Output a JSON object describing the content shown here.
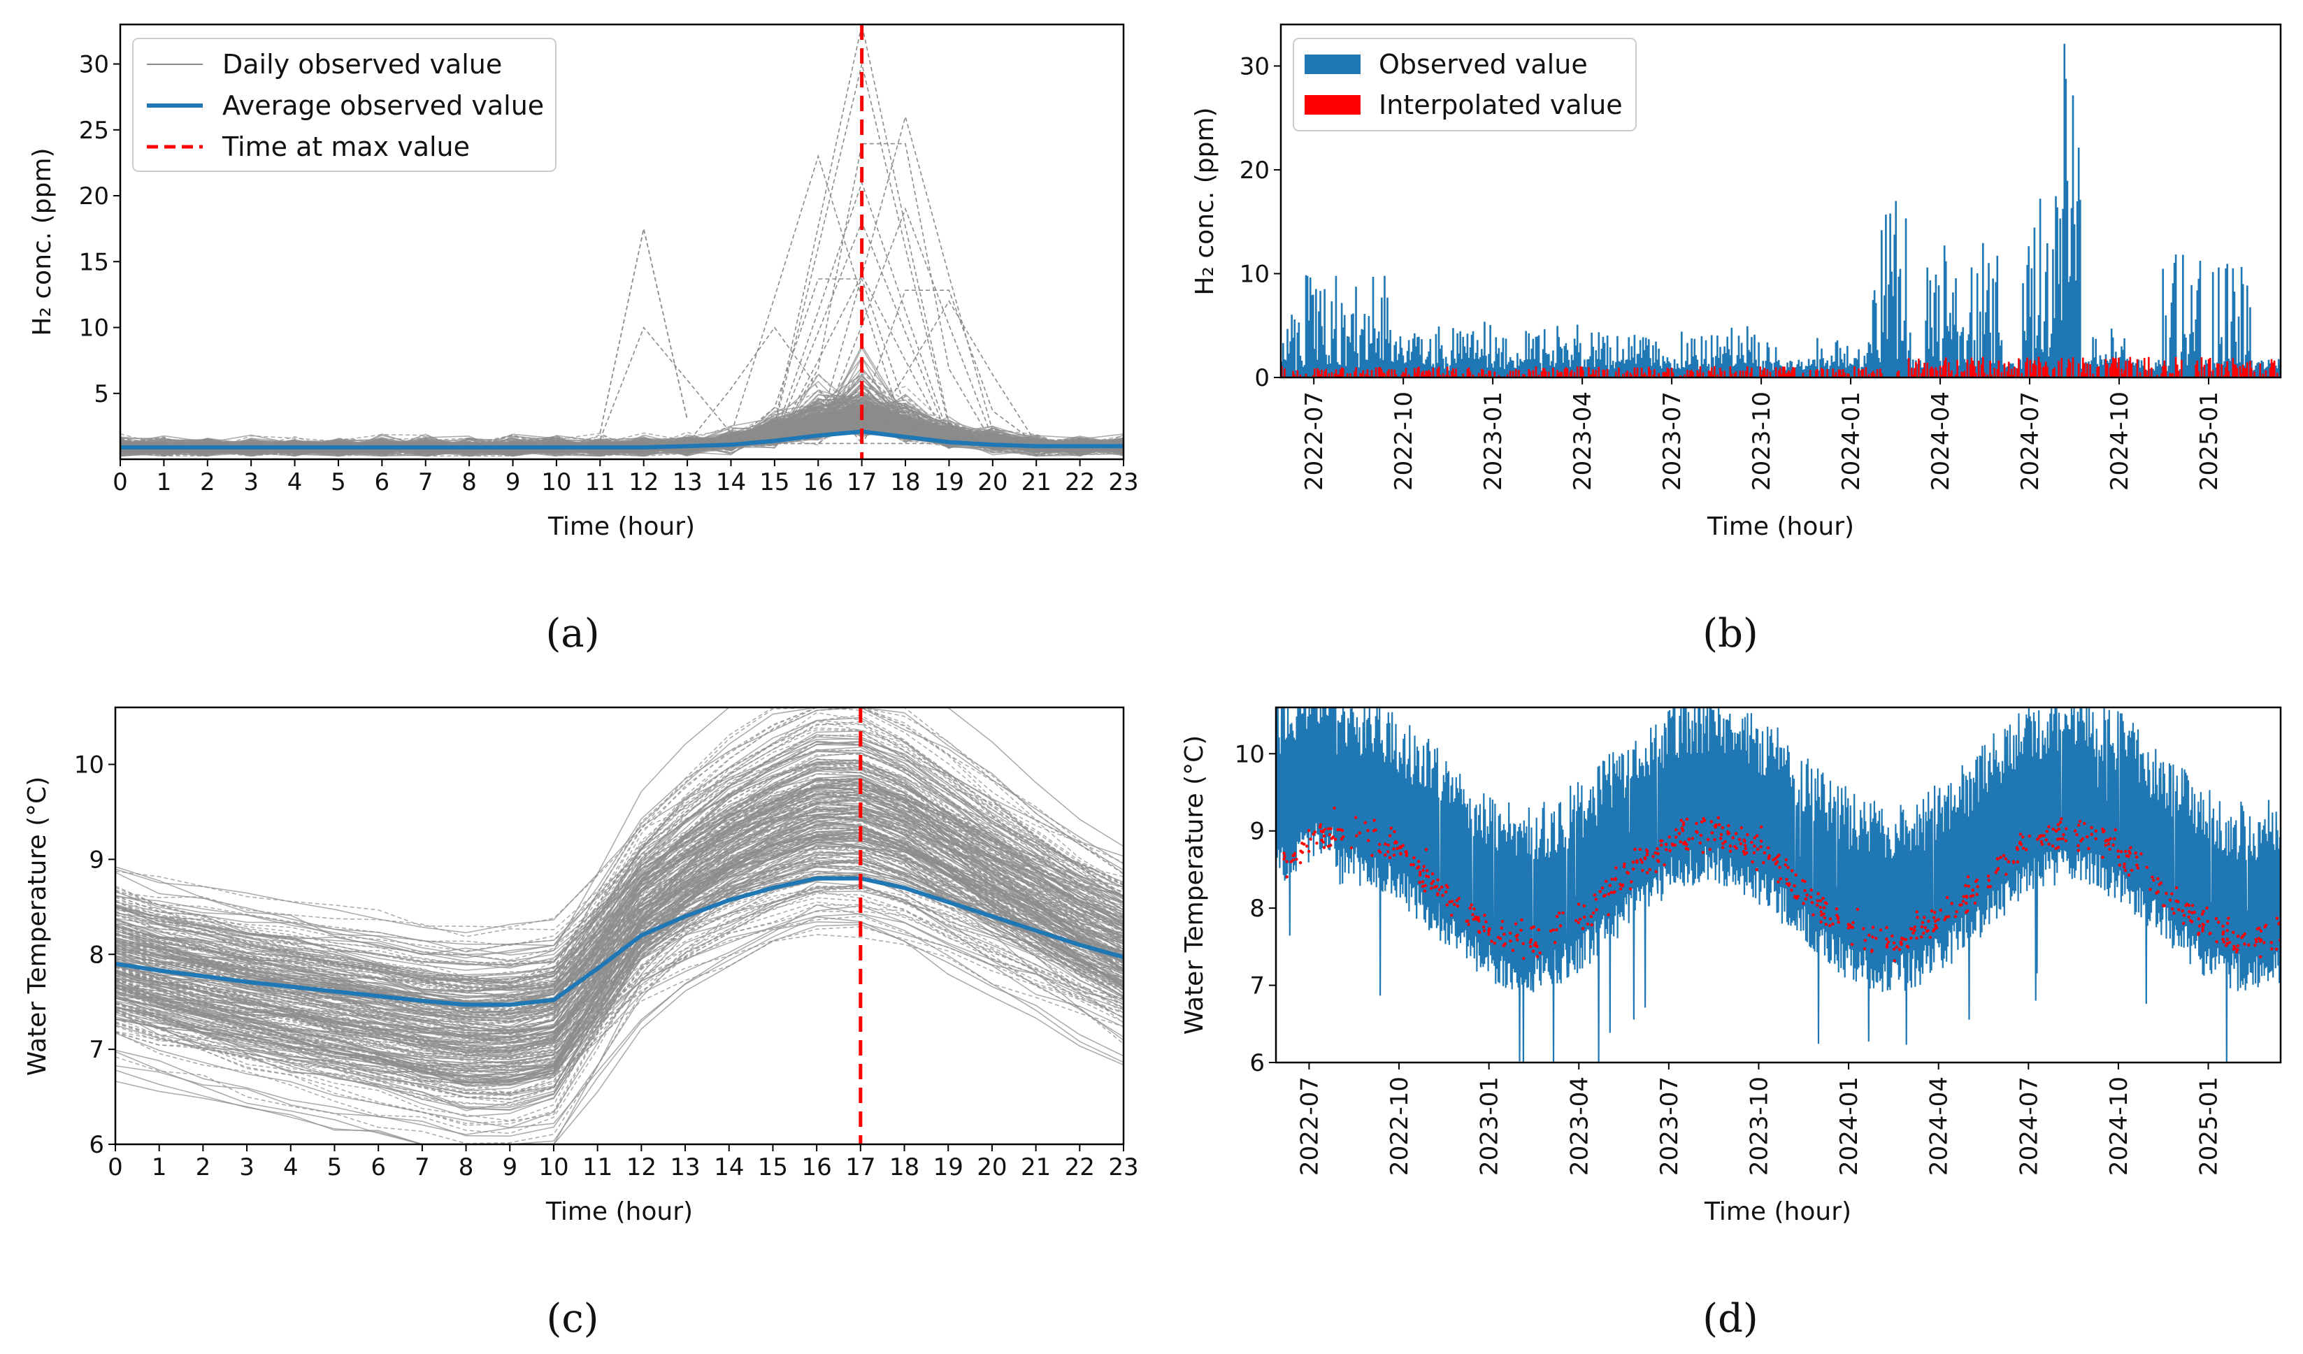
{
  "chart_data": [
    {
      "panel": "a",
      "caption": "(a)",
      "type": "line",
      "xlabel": "Time (hour)",
      "ylabel": "H₂ conc. (ppm)",
      "xlim": [
        0,
        23
      ],
      "ylim": [
        0,
        33
      ],
      "x_ticks": [
        "0",
        "1",
        "2",
        "3",
        "4",
        "5",
        "6",
        "7",
        "8",
        "9",
        "10",
        "11",
        "12",
        "13",
        "14",
        "15",
        "16",
        "17",
        "18",
        "19",
        "20",
        "21",
        "22",
        "23"
      ],
      "y_ticks": [
        "5",
        "10",
        "15",
        "20",
        "25",
        "30"
      ],
      "legend_position": "top-left",
      "series": [
        {
          "name": "Daily observed value",
          "color": "#8c8c8c",
          "style": "thin"
        },
        {
          "name": "Average observed value",
          "color": "#1f77b4",
          "x": [
            0,
            1,
            2,
            3,
            4,
            5,
            6,
            7,
            8,
            9,
            10,
            11,
            12,
            13,
            14,
            15,
            16,
            17,
            18,
            19,
            20,
            21,
            22,
            23
          ],
          "values": [
            0.9,
            0.9,
            0.9,
            0.9,
            0.9,
            0.9,
            0.9,
            0.9,
            0.9,
            0.9,
            0.9,
            0.9,
            0.9,
            1.0,
            1.1,
            1.4,
            1.8,
            2.1,
            1.7,
            1.3,
            1.1,
            1.0,
            1.0,
            1.0
          ]
        },
        {
          "name": "Time at max value",
          "color": "#ff0000",
          "style": "dashed",
          "x": 17
        }
      ]
    },
    {
      "panel": "b",
      "caption": "(b)",
      "type": "bar",
      "xlabel": "Time (hour)",
      "ylabel": "H₂ conc. (ppm)",
      "ylim": [
        0,
        34
      ],
      "x_ticks": [
        "2022-07",
        "2022-10",
        "2023-01",
        "2023-04",
        "2023-07",
        "2023-10",
        "2024-01",
        "2024-04",
        "2024-07",
        "2024-10",
        "2025-01"
      ],
      "y_ticks": [
        "0",
        "10",
        "20",
        "30"
      ],
      "legend_position": "top-left",
      "series": [
        {
          "name": "Observed value",
          "color": "#1f77b4"
        },
        {
          "name": "Interpolated value",
          "color": "#ff0000"
        }
      ]
    },
    {
      "panel": "c",
      "caption": "(c)",
      "type": "line",
      "xlabel": "Time (hour)",
      "ylabel": "Water Temperature (°C)",
      "xlim": [
        0,
        23
      ],
      "ylim": [
        6,
        10.6
      ],
      "x_ticks": [
        "0",
        "1",
        "2",
        "3",
        "4",
        "5",
        "6",
        "7",
        "8",
        "9",
        "10",
        "11",
        "12",
        "13",
        "14",
        "15",
        "16",
        "17",
        "18",
        "19",
        "20",
        "21",
        "22",
        "23"
      ],
      "y_ticks": [
        "6",
        "7",
        "8",
        "9",
        "10"
      ],
      "series": [
        {
          "name": "Daily observed value",
          "color": "#8c8c8c",
          "style": "thin"
        },
        {
          "name": "Average observed value",
          "color": "#1f77b4",
          "x": [
            0,
            1,
            2,
            3,
            4,
            5,
            6,
            7,
            8,
            9,
            10,
            11,
            12,
            13,
            14,
            15,
            16,
            17,
            18,
            19,
            20,
            21,
            22,
            23
          ],
          "values": [
            7.9,
            7.83,
            7.77,
            7.71,
            7.66,
            7.61,
            7.56,
            7.51,
            7.47,
            7.47,
            7.52,
            7.85,
            8.2,
            8.4,
            8.57,
            8.7,
            8.8,
            8.8,
            8.7,
            8.55,
            8.4,
            8.25,
            8.1,
            7.97
          ]
        },
        {
          "name": "Time at max value",
          "color": "#ff0000",
          "style": "dashed",
          "x": 17
        }
      ]
    },
    {
      "panel": "d",
      "caption": "(d)",
      "type": "line",
      "xlabel": "Time (hour)",
      "ylabel": "Water Temperature (°C)",
      "ylim": [
        6,
        10.6
      ],
      "x_ticks": [
        "2022-07",
        "2022-10",
        "2023-01",
        "2023-04",
        "2023-07",
        "2023-10",
        "2024-01",
        "2024-04",
        "2024-07",
        "2024-10",
        "2025-01"
      ],
      "y_ticks": [
        "6",
        "7",
        "8",
        "9",
        "10"
      ],
      "series": [
        {
          "name": "Observed value",
          "color": "#1f77b4"
        },
        {
          "name": "Interpolated value",
          "color": "#ff0000"
        }
      ]
    }
  ]
}
